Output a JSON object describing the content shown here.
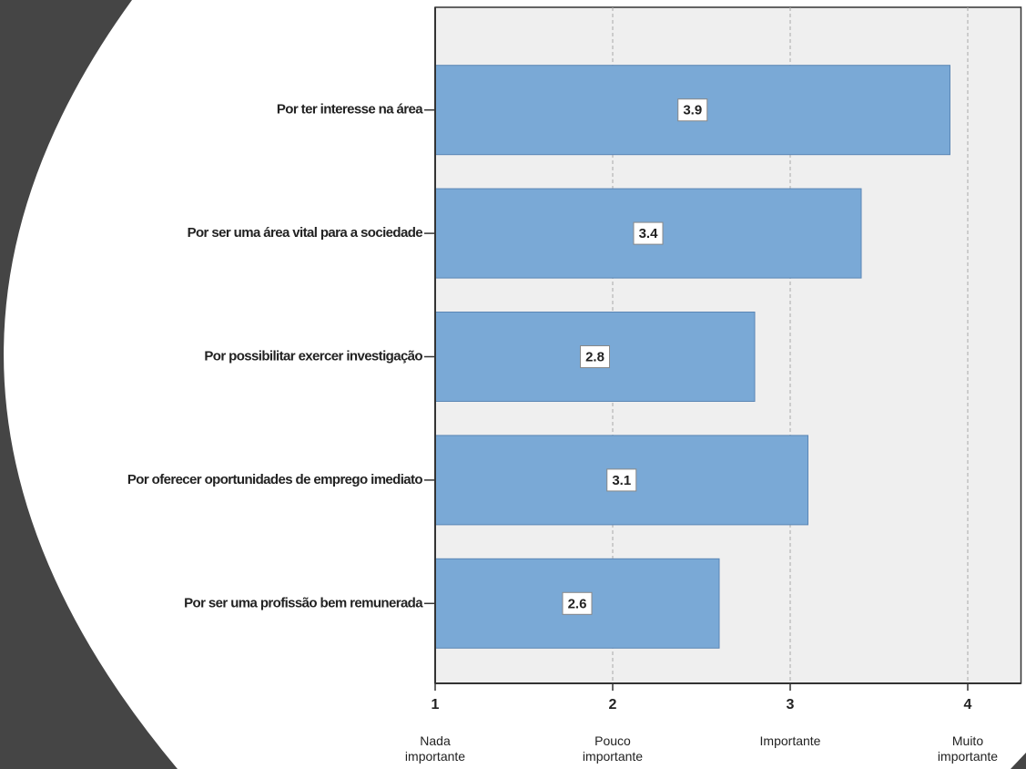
{
  "chart_data": {
    "type": "bar",
    "orientation": "horizontal",
    "categories": [
      "Por ter interesse na área",
      "Por ser uma área vital para a sociedade",
      "Por possibilitar exercer investigação",
      "Por oferecer oportunidades de emprego imediato",
      "Por ser uma profissão bem remunerada"
    ],
    "values": [
      3.9,
      3.4,
      2.8,
      3.1,
      2.6
    ],
    "color": "#7aa9d6",
    "xlim": [
      1,
      4.3
    ],
    "xticks": [
      1,
      2,
      3,
      4
    ],
    "tick_descriptions": [
      "Nada importante",
      "Pouco importante",
      "Importante",
      "Muito importante"
    ],
    "grid": true
  }
}
